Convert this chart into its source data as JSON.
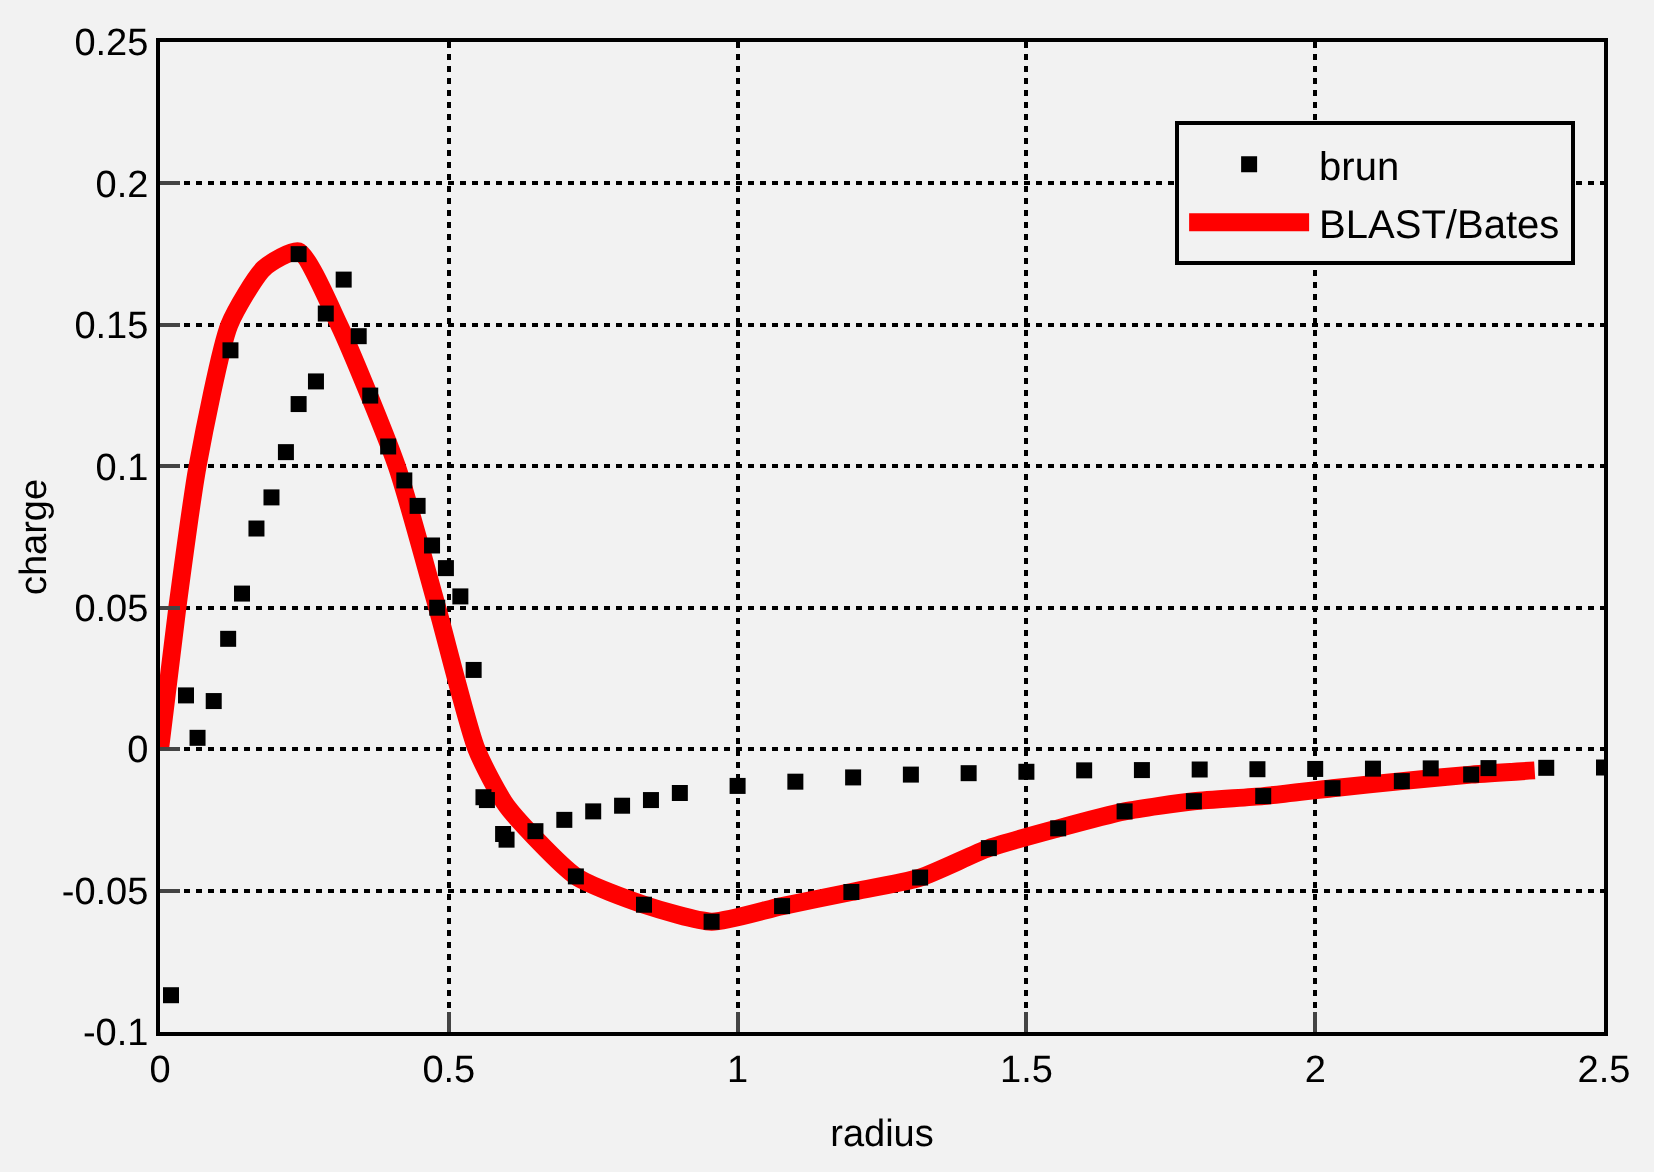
{
  "chart_data": {
    "type": "scatter",
    "xlabel": "radius",
    "ylabel": "charge",
    "xlim": [
      0,
      2.5
    ],
    "xticks": [
      0,
      0.5,
      1,
      1.5,
      2,
      2.5
    ],
    "ylim": [
      -0.1,
      0.25
    ],
    "yticks": [
      -0.1,
      -0.05,
      0,
      0.05,
      0.1,
      0.15,
      0.2,
      0.25
    ],
    "grid": true,
    "legend": "top right",
    "series": [
      {
        "name": "brun",
        "marker": "square",
        "color": "#000000",
        "x": [
          0.019,
          0.045,
          0.065,
          0.093,
          0.118,
          0.122,
          0.142,
          0.167,
          0.193,
          0.218,
          0.24,
          0.24,
          0.27,
          0.287,
          0.318,
          0.344,
          0.364,
          0.395,
          0.423,
          0.446,
          0.471,
          0.48,
          0.495,
          0.52,
          0.543,
          0.56,
          0.566,
          0.594,
          0.6,
          0.65,
          0.7,
          0.72,
          0.75,
          0.8,
          0.838,
          0.85,
          0.9,
          0.955,
          1.0,
          1.077,
          1.1,
          1.197,
          1.2,
          1.3,
          1.316,
          1.4,
          1.435,
          1.5,
          1.555,
          1.6,
          1.67,
          1.7,
          1.79,
          1.8,
          1.9,
          1.91,
          2.0,
          2.03,
          2.1,
          2.15,
          2.2,
          2.27,
          2.3,
          2.4,
          2.5
        ],
        "values": [
          -0.087,
          0.019,
          0.004,
          0.017,
          0.039,
          0.141,
          0.055,
          0.078,
          0.089,
          0.105,
          0.122,
          0.175,
          0.13,
          0.154,
          0.166,
          0.146,
          0.125,
          0.107,
          0.095,
          0.086,
          0.072,
          0.05,
          0.064,
          0.054,
          0.028,
          -0.017,
          -0.018,
          -0.03,
          -0.032,
          -0.029,
          -0.025,
          -0.045,
          -0.022,
          -0.02,
          -0.055,
          -0.018,
          -0.0155,
          -0.061,
          -0.013,
          -0.0555,
          -0.0115,
          -0.0505,
          -0.01,
          -0.009,
          -0.0454,
          -0.0085,
          -0.035,
          -0.008,
          -0.028,
          -0.0075,
          -0.022,
          -0.0074,
          -0.0184,
          -0.0072,
          -0.0071,
          -0.0166,
          -0.007,
          -0.0138,
          -0.0069,
          -0.0113,
          -0.0068,
          -0.009,
          -0.0067,
          -0.0066,
          -0.0065
        ]
      },
      {
        "name": "BLAST/Bates",
        "type": "line",
        "color": "#ff0000",
        "x": [
          0,
          0.03,
          0.065,
          0.12,
          0.18,
          0.24,
          0.31,
          0.41,
          0.48,
          0.548,
          0.6,
          0.72,
          0.838,
          0.955,
          1.077,
          1.197,
          1.316,
          1.435,
          1.555,
          1.67,
          1.79,
          1.91,
          2.03,
          2.15,
          2.27,
          2.38
        ],
        "values": [
          0,
          0.05,
          0.1,
          0.15,
          0.17,
          0.176,
          0.15,
          0.1,
          0.05,
          0,
          -0.02,
          -0.045,
          -0.055,
          -0.061,
          -0.0555,
          -0.0505,
          -0.0454,
          -0.035,
          -0.028,
          -0.022,
          -0.0184,
          -0.0166,
          -0.0138,
          -0.0113,
          -0.009,
          -0.0075
        ]
      }
    ]
  }
}
